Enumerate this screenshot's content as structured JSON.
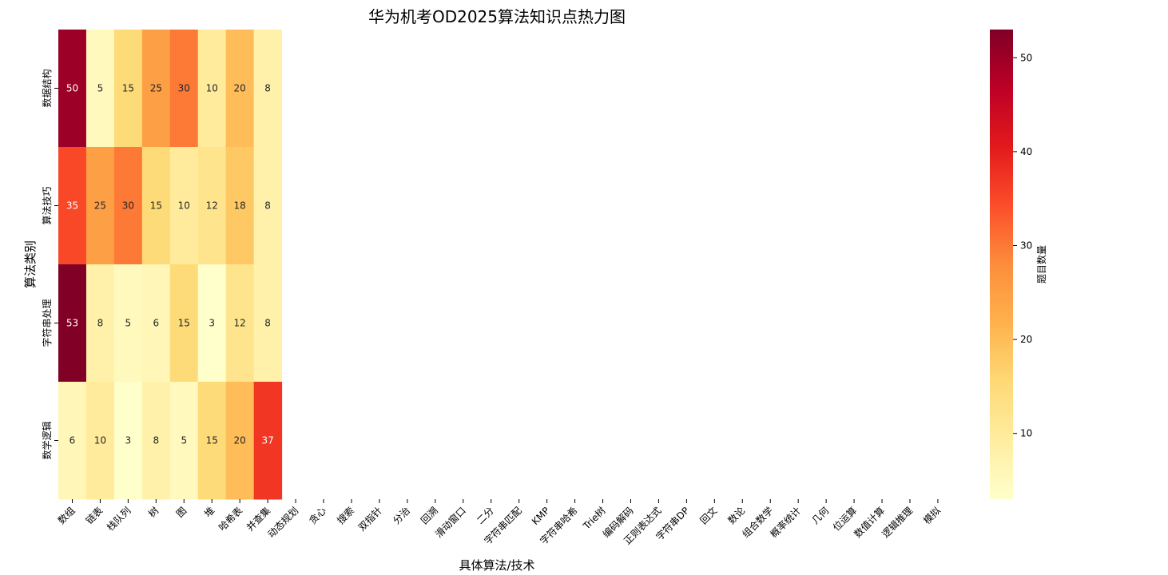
{
  "chart_data": {
    "type": "heatmap",
    "title": "华为机考OD2025算法知识点热力图",
    "xlabel": "具体算法/技术",
    "ylabel": "算法类别",
    "x_categories": [
      "数组",
      "链表",
      "栈队列",
      "树",
      "图",
      "堆",
      "哈希表",
      "并查集",
      "动态规划",
      "贪心",
      "搜索",
      "双指针",
      "分治",
      "回溯",
      "滑动窗口",
      "二分",
      "字符串匹配",
      "KMP",
      "字符串哈希",
      "Trie树",
      "编码解码",
      "正则表达式",
      "字符串DP",
      "回文",
      "数论",
      "组合数学",
      "概率统计",
      "几何",
      "位运算",
      "数值计算",
      "逻辑推理",
      "模拟"
    ],
    "y_categories": [
      "数据结构",
      "算法技巧",
      "字符串处理",
      "数学逻辑"
    ],
    "values": [
      [
        50,
        5,
        15,
        25,
        30,
        10,
        20,
        8
      ],
      [
        35,
        25,
        30,
        15,
        10,
        12,
        18,
        8
      ],
      [
        53,
        8,
        5,
        6,
        15,
        3,
        12,
        8
      ],
      [
        6,
        10,
        3,
        8,
        5,
        15,
        20,
        37
      ]
    ],
    "colorbar": {
      "label": "题目数量",
      "range": [
        3,
        53
      ],
      "ticks": [
        10,
        20,
        30,
        40,
        50
      ],
      "colormap": "YlOrRd"
    }
  }
}
